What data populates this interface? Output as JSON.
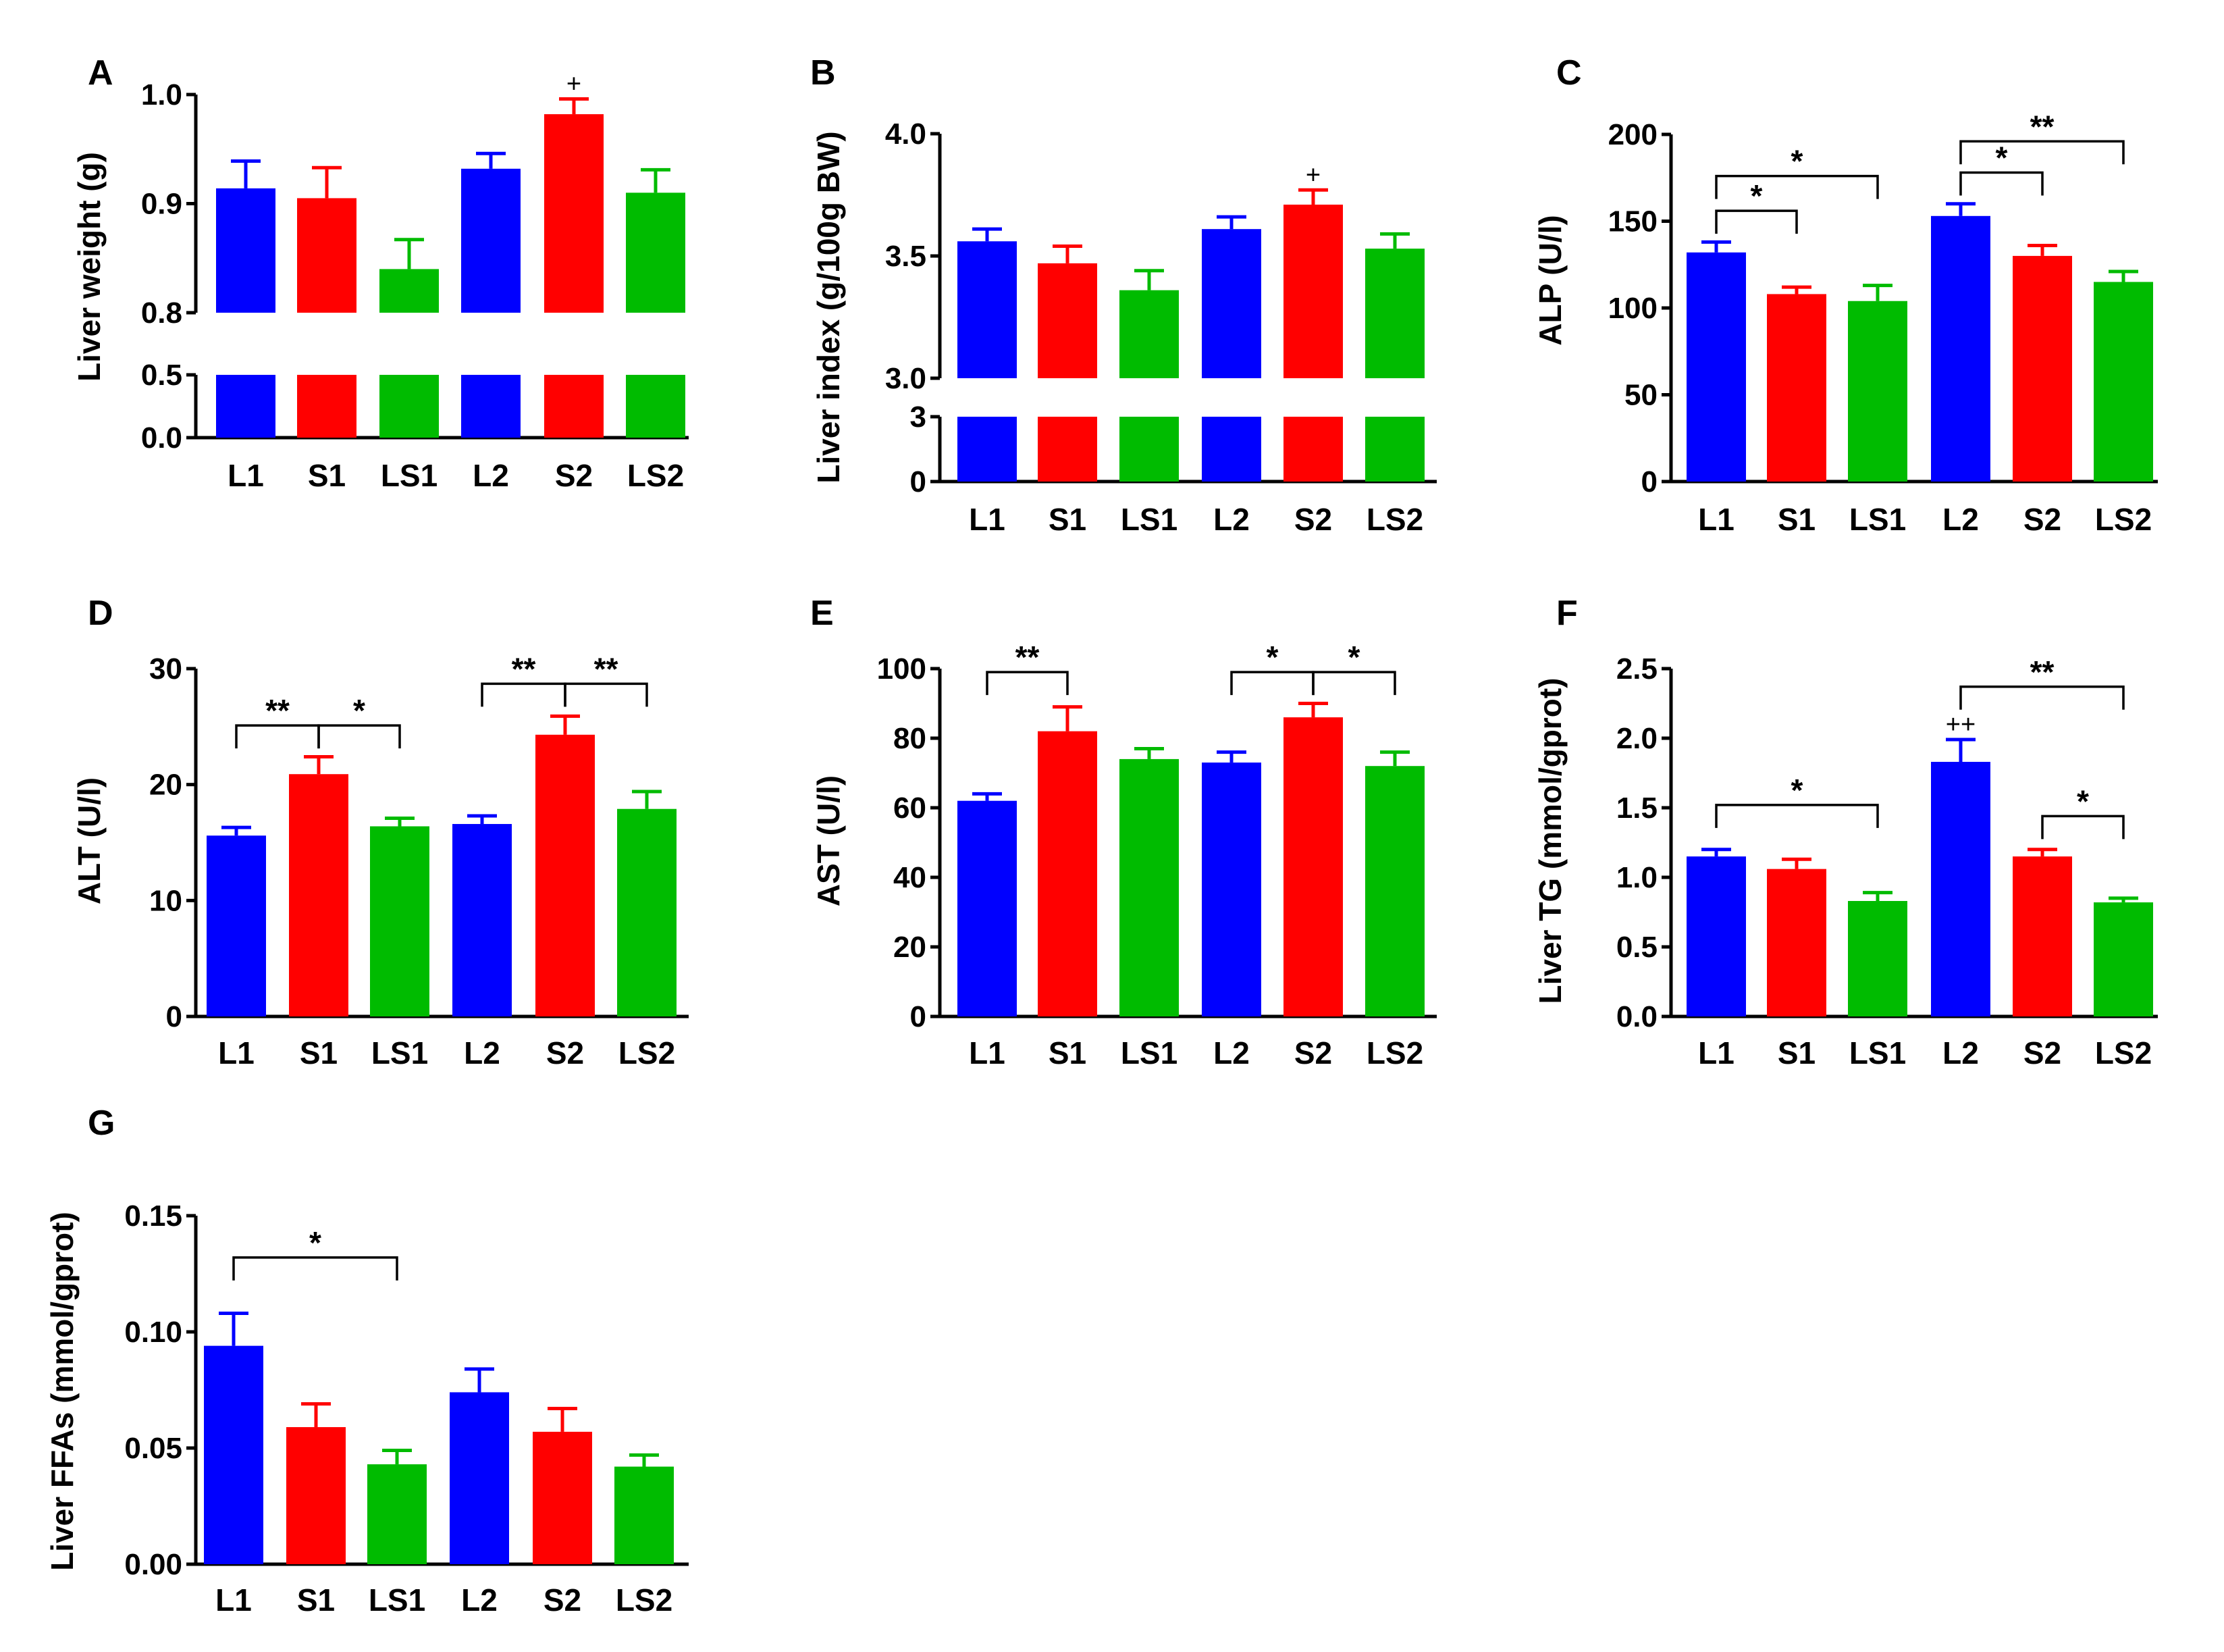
{
  "colors": {
    "L": "#0000ff",
    "S": "#ff0000",
    "LS": "#00bb00",
    "axis": "#000000"
  },
  "categories": [
    "L1",
    "S1",
    "LS1",
    "L2",
    "S2",
    "LS2"
  ],
  "chart_data": [
    {
      "panel": "A",
      "type": "bar",
      "ylabel": "Liver weight (g)",
      "broken_axis": true,
      "lower_segment": {
        "ylim": [
          0,
          0.5
        ],
        "ticks": [
          "0.0",
          "0.5"
        ]
      },
      "upper_segment": {
        "ylim": [
          0.8,
          1.0
        ],
        "ticks": [
          "0.8",
          "0.9",
          "1.0"
        ]
      },
      "categories": [
        "L1",
        "S1",
        "LS1",
        "L2",
        "S2",
        "LS2"
      ],
      "values": [
        0.914,
        0.905,
        0.84,
        0.932,
        0.982,
        0.91
      ],
      "errors": [
        0.025,
        0.028,
        0.027,
        0.014,
        0.014,
        0.021
      ],
      "marks": [
        {
          "index": 4,
          "label": "+"
        }
      ],
      "brackets": []
    },
    {
      "panel": "B",
      "type": "bar",
      "ylabel": "Liver index (g/100g BW)",
      "broken_axis": true,
      "lower_segment": {
        "ylim": [
          0,
          3
        ],
        "ticks": [
          "0",
          "3"
        ]
      },
      "upper_segment": {
        "ylim": [
          3.0,
          4.0
        ],
        "ticks": [
          "3.0",
          "3.5",
          "4.0"
        ]
      },
      "categories": [
        "L1",
        "S1",
        "LS1",
        "L2",
        "S2",
        "LS2"
      ],
      "values": [
        3.56,
        3.47,
        3.36,
        3.61,
        3.71,
        3.53
      ],
      "errors": [
        0.05,
        0.07,
        0.08,
        0.05,
        0.06,
        0.06
      ],
      "marks": [
        {
          "index": 4,
          "label": "+"
        }
      ],
      "brackets": []
    },
    {
      "panel": "C",
      "type": "bar",
      "ylabel": "ALP (U/l)",
      "ylim": [
        0,
        200
      ],
      "ticks": [
        "0",
        "50",
        "100",
        "150",
        "200"
      ],
      "categories": [
        "L1",
        "S1",
        "LS1",
        "L2",
        "S2",
        "LS2"
      ],
      "values": [
        132,
        108,
        104,
        153,
        130,
        115
      ],
      "errors": [
        6,
        4,
        9,
        7,
        6,
        6
      ],
      "marks": [],
      "brackets": [
        {
          "from": 0,
          "to": 1,
          "y": 156,
          "label": "*"
        },
        {
          "from": 0,
          "to": 2,
          "y": 176,
          "label": "*"
        },
        {
          "from": 3,
          "to": 4,
          "y": 178,
          "label": "*"
        },
        {
          "from": 3,
          "to": 5,
          "y": 196,
          "label": "**"
        }
      ]
    },
    {
      "panel": "D",
      "type": "bar",
      "ylabel": "ALT (U/l)",
      "ylim": [
        0,
        30
      ],
      "ticks": [
        "0",
        "10",
        "20",
        "30"
      ],
      "categories": [
        "L1",
        "S1",
        "LS1",
        "L2",
        "S2",
        "LS2"
      ],
      "values": [
        15.6,
        20.9,
        16.4,
        16.6,
        24.3,
        17.9
      ],
      "errors": [
        0.7,
        1.5,
        0.7,
        0.7,
        1.6,
        1.5
      ],
      "marks": [],
      "brackets": [
        {
          "from": 0,
          "to": 1,
          "y": 25.1,
          "label": "**"
        },
        {
          "from": 1,
          "to": 2,
          "y": 25.1,
          "label": "*"
        },
        {
          "from": 3,
          "to": 4,
          "y": 28.7,
          "label": "**"
        },
        {
          "from": 4,
          "to": 5,
          "y": 28.7,
          "label": "**"
        }
      ]
    },
    {
      "panel": "E",
      "type": "bar",
      "ylabel": "AST (U/l)",
      "ylim": [
        0,
        100
      ],
      "ticks": [
        "0",
        "20",
        "40",
        "60",
        "80",
        "100"
      ],
      "categories": [
        "L1",
        "S1",
        "LS1",
        "L2",
        "S2",
        "LS2"
      ],
      "values": [
        62,
        82,
        74,
        73,
        86,
        72
      ],
      "errors": [
        2,
        7,
        3,
        3,
        4,
        4
      ],
      "marks": [],
      "brackets": [
        {
          "from": 0,
          "to": 1,
          "y": 99,
          "label": "**"
        },
        {
          "from": 3,
          "to": 4,
          "y": 99,
          "label": "*"
        },
        {
          "from": 4,
          "to": 5,
          "y": 99,
          "label": "*"
        }
      ]
    },
    {
      "panel": "F",
      "type": "bar",
      "ylabel": "Liver TG (mmol/gprot)",
      "ylim": [
        0,
        2.5
      ],
      "ticks": [
        "0.0",
        "0.5",
        "1.0",
        "1.5",
        "2.0",
        "2.5"
      ],
      "categories": [
        "L1",
        "S1",
        "LS1",
        "L2",
        "S2",
        "LS2"
      ],
      "values": [
        1.15,
        1.06,
        0.83,
        1.83,
        1.15,
        0.82
      ],
      "errors": [
        0.05,
        0.07,
        0.06,
        0.16,
        0.05,
        0.03
      ],
      "marks": [
        {
          "index": 3,
          "label": "++"
        }
      ],
      "brackets": [
        {
          "from": 0,
          "to": 2,
          "y": 1.52,
          "label": "*"
        },
        {
          "from": 3,
          "to": 5,
          "y": 2.37,
          "label": "**"
        },
        {
          "from": 4,
          "to": 5,
          "y": 1.44,
          "label": "*"
        }
      ]
    },
    {
      "panel": "G",
      "type": "bar",
      "ylabel": "Liver FFAs (mmol/gprot)",
      "ylim": [
        0,
        0.15
      ],
      "ticks": [
        "0.00",
        "0.05",
        "0.10",
        "0.15"
      ],
      "categories": [
        "L1",
        "S1",
        "LS1",
        "L2",
        "S2",
        "LS2"
      ],
      "values": [
        0.094,
        0.059,
        0.043,
        0.074,
        0.057,
        0.042
      ],
      "errors": [
        0.014,
        0.01,
        0.006,
        0.01,
        0.01,
        0.005
      ],
      "marks": [],
      "brackets": [
        {
          "from": 0,
          "to": 2,
          "y": 0.132,
          "label": "*"
        }
      ]
    }
  ]
}
